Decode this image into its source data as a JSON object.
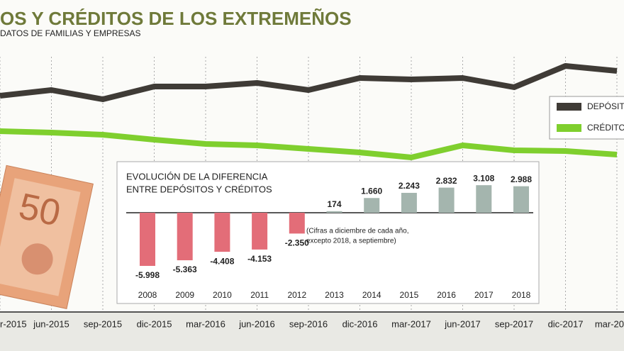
{
  "chart_data": [
    {
      "type": "line",
      "title": "OS Y CRÉDITOS DE LOS EXTREMEÑOS",
      "subtitle": "DATOS DE FAMILIAS Y EMPRESAS",
      "categories": [
        "r-2015",
        "jun-2015",
        "sep-2015",
        "dic-2015",
        "mar-2016",
        "jun-2016",
        "sep-2016",
        "dic-2016",
        "mar-2017",
        "jun-2017",
        "sep-2017",
        "dic-2017",
        "mar-20"
      ],
      "series": [
        {
          "name": "DEPÓSIT",
          "color": "#3f3b36",
          "values": [
            165,
            173,
            160,
            178,
            178,
            183,
            173,
            190,
            188,
            190,
            177,
            207,
            200
          ]
        },
        {
          "name": "CRÉDITO",
          "color": "#7fcf2e",
          "values": [
            115,
            113,
            110,
            103,
            97,
            95,
            90,
            85,
            78,
            95,
            88,
            87,
            82
          ]
        }
      ],
      "ylim": [
        0,
        300
      ],
      "grid": true
    },
    {
      "type": "bar",
      "title": [
        "EVOLUCIÓN DE LA DIFERENCIA",
        "ENTRE DEPÓSITOS Y CRÉDITOS"
      ],
      "note": [
        "(Cifras a diciembre de cada año,",
        "excepto 2018, a septiembre)"
      ],
      "categories": [
        "2008",
        "2009",
        "2010",
        "2011",
        "2012",
        "2013",
        "2014",
        "2015",
        "2016",
        "2017",
        "2018"
      ],
      "values": [
        -5998,
        -5363,
        -4408,
        -4153,
        -2350,
        174,
        1660,
        2243,
        2832,
        3108,
        2988
      ],
      "value_labels": [
        "-5.998",
        "-5.363",
        "-4.408",
        "-4.153",
        "-2.350",
        "174",
        "1.660",
        "2.243",
        "2.832",
        "3.108",
        "2.988"
      ],
      "colors": {
        "negative": "#e36d78",
        "positive": "#a4b5ae"
      },
      "ylim": [
        -6000,
        3200
      ]
    }
  ]
}
